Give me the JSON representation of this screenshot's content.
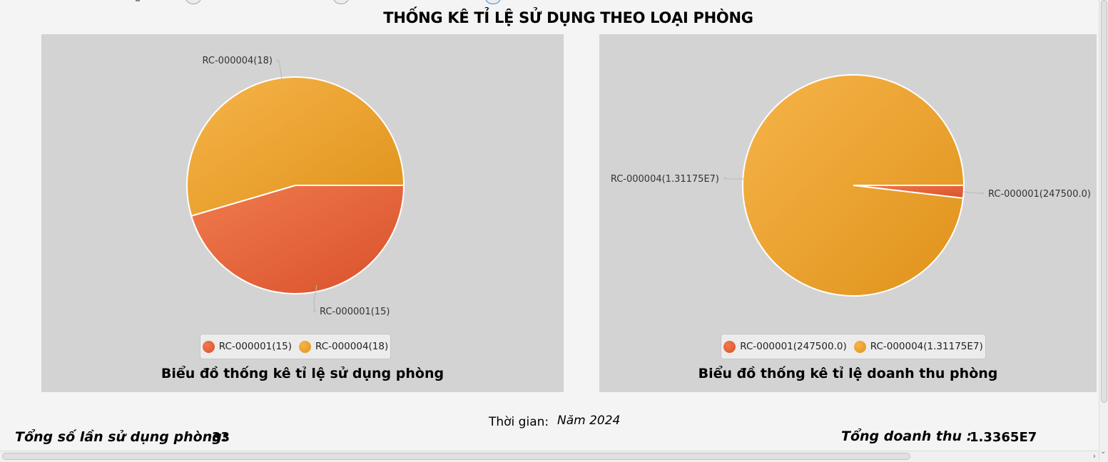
{
  "page": {
    "title": "THỐNG KÊ TỈ LỆ SỬ DỤNG THEO LOẠI PHÒNG",
    "time_label": "Thời gian:",
    "time_value": "Năm 2024",
    "total_use_label": "Tổng số lần sử dụng phòng:",
    "total_use_value": "33",
    "total_revenue_label": "Tổng doanh thu :",
    "total_revenue_value": "1.3365E7"
  },
  "colors": {
    "slice_1": "#e05a2b",
    "slice_2": "#eba025",
    "panel_bg": "#d3d3d3"
  },
  "chart_data": [
    {
      "type": "pie",
      "title": "Biểu đồ thống kê tỉ lệ sử dụng phòng",
      "labels": [
        "RC-000001(15)",
        "RC-000004(18)"
      ],
      "values": [
        15,
        18
      ],
      "legend_position": "bottom"
    },
    {
      "type": "pie",
      "title": "Biểu đồ thống kê tỉ lệ doanh thu phòng",
      "labels": [
        "RC-000001(247500.0)",
        "RC-000004(1.31175E7)"
      ],
      "values": [
        247500.0,
        13117500
      ],
      "legend_position": "bottom"
    }
  ]
}
